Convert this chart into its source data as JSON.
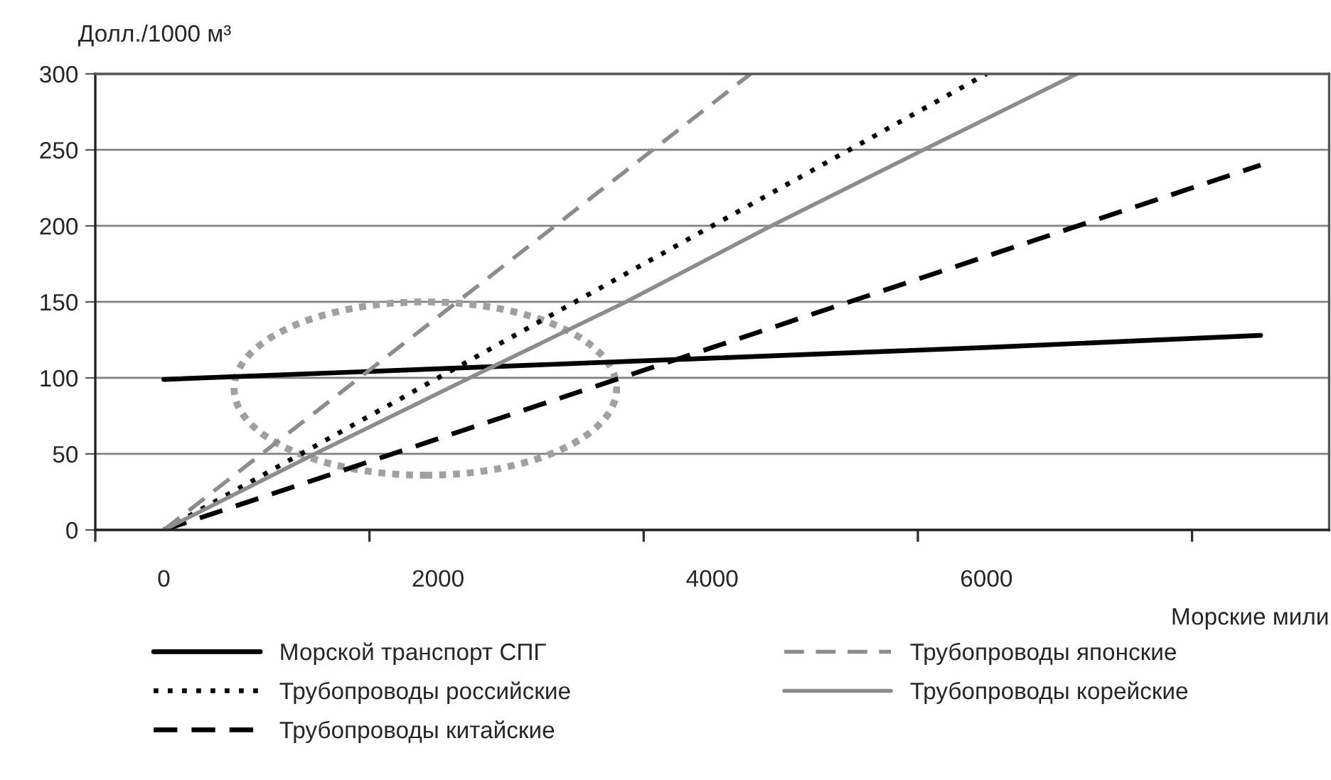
{
  "chart_data": {
    "type": "line",
    "ylabel": "Долл./1000 м³",
    "xlabel": "Морские мили",
    "series": [
      {
        "name": "Морской транспорт СПГ",
        "color": "#000000",
        "line_style": "solid",
        "x": [
          0,
          2000,
          4000,
          6000,
          8000
        ],
        "values": [
          99,
          106,
          113,
          120,
          128
        ]
      },
      {
        "name": "Трубопроводы российские",
        "color": "#000000",
        "line_style": "dotted",
        "x": [
          0,
          6000
        ],
        "values": [
          0,
          300
        ]
      },
      {
        "name": "Трубопроводы китайские",
        "color": "#000000",
        "line_style": "dashed",
        "x": [
          0,
          8000
        ],
        "values": [
          0,
          240
        ]
      },
      {
        "name": "Трубопроводы японские",
        "color": "#8c8c8c",
        "line_style": "dashed",
        "x": [
          0,
          4280
        ],
        "values": [
          0,
          300
        ]
      },
      {
        "name": "Трубопроводы корейские",
        "color": "#8c8c8c",
        "line_style": "solid",
        "x": [
          0,
          1100,
          2230,
          3370,
          4430,
          5540,
          6660
        ],
        "values": [
          0,
          50,
          100,
          150,
          200,
          250,
          300
        ]
      }
    ],
    "xlim": [
      -500,
      8500
    ],
    "xticks": [
      {
        "value": -500,
        "label": null
      },
      0,
      {
        "value": 1500,
        "label": null
      },
      2000,
      {
        "value": 3500,
        "label": null
      },
      4000,
      {
        "value": 5500,
        "label": null
      },
      6000,
      {
        "value": 7500,
        "label": null
      }
    ],
    "ylim": [
      0,
      300
    ],
    "yticks": [
      0,
      50,
      100,
      150,
      200,
      250,
      300
    ],
    "grid": "y",
    "legend": "bottom",
    "marker": "none"
  }
}
